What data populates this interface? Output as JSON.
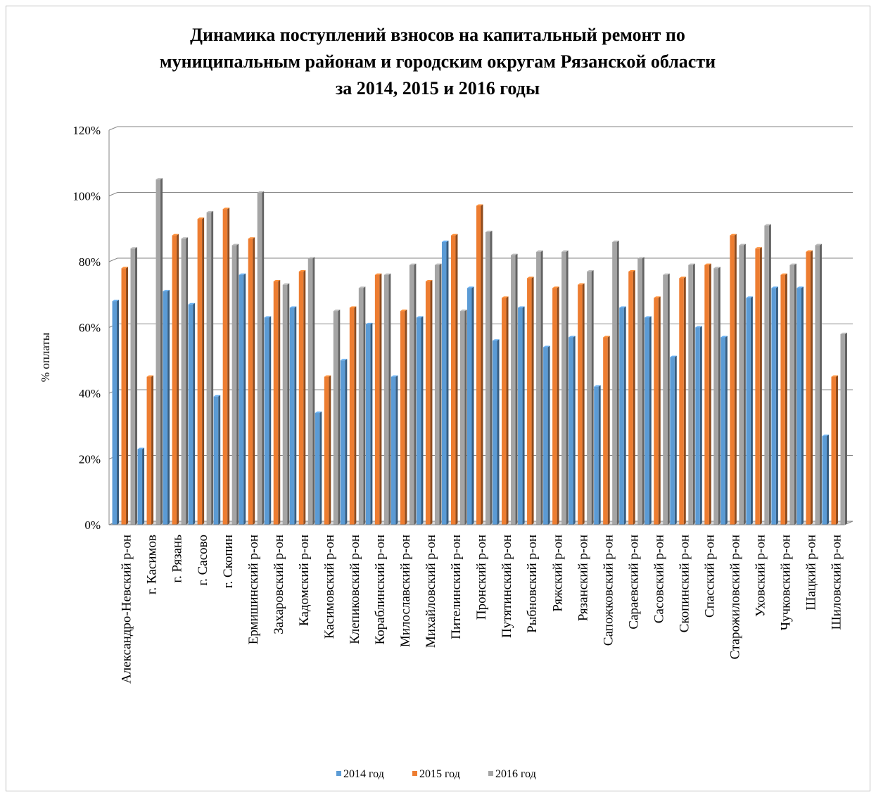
{
  "chart_data": {
    "type": "bar",
    "title_lines": [
      "Динамика поступлений взносов на капитальный ремонт по",
      "муниципальным районам и городским округам Рязанской области",
      "за 2014, 2015 и 2016 годы"
    ],
    "ylabel": "% оплаты",
    "xlabel": "",
    "ylim": [
      0,
      120
    ],
    "yticks": [
      "0%",
      "20%",
      "40%",
      "60%",
      "80%",
      "100%",
      "120%"
    ],
    "grid": true,
    "legend_position": "bottom",
    "categories": [
      "Александро-Невский р-он",
      "г. Касимов",
      "г. Рязань",
      "г. Сасово",
      "г. Скопин",
      "Ермишинский р-он",
      "Захаровский р-он",
      "Кадомский р-он",
      "Касимовский р-он",
      "Клепиковский р-он",
      "Кораблинский р-он",
      "Милославский р-он",
      "Михайловский р-он",
      "Пителинский р-он",
      "Пронский р-он",
      "Путятинский р-он",
      "Рыбновский р-он",
      "Ряжский р-он",
      "Рязанский р-он",
      "Сапожковский р-он",
      "Сараевский р-он",
      "Сасовский р-он",
      "Скопинский р-он",
      "Спасский р-он",
      "Старожиловский р-он",
      "Уховский р-он",
      "Чучковский р-он",
      "Шацкий р-он",
      "Шиловский р-он"
    ],
    "series": [
      {
        "name": "2014 год",
        "color": "#5b9bd5",
        "values": [
          68,
          23,
          71,
          67,
          39,
          76,
          63,
          66,
          34,
          50,
          61,
          45,
          63,
          86,
          72,
          56,
          66,
          54,
          57,
          42,
          66,
          63,
          51,
          60,
          57,
          69,
          72,
          72,
          27
        ]
      },
      {
        "name": "2015 год",
        "color": "#ed7d31",
        "values": [
          78,
          45,
          88,
          93,
          96,
          87,
          74,
          77,
          45,
          66,
          76,
          65,
          74,
          88,
          97,
          69,
          75,
          72,
          73,
          57,
          77,
          69,
          75,
          79,
          88,
          84,
          76,
          83,
          45
        ]
      },
      {
        "name": "2016 год",
        "color": "#a5a5a5",
        "values": [
          84,
          105,
          87,
          95,
          85,
          101,
          73,
          81,
          65,
          72,
          76,
          79,
          79,
          65,
          89,
          82,
          83,
          83,
          77,
          86,
          81,
          76,
          79,
          78,
          85,
          91,
          79,
          85,
          58
        ]
      }
    ]
  }
}
